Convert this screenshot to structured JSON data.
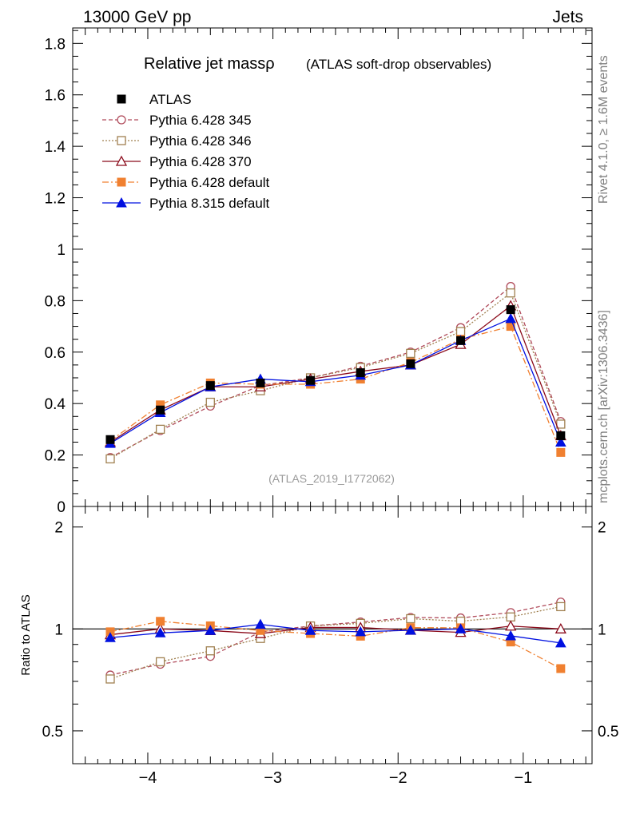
{
  "header": {
    "left": "13000 GeV pp",
    "right": "Jets"
  },
  "side_text": {
    "rivet": "Rivet 4.1.0, ≥ 1.6M events",
    "mcplots": "mcplots.cern.ch [arXiv:1306.3436]"
  },
  "chart_data": {
    "type": "line",
    "title": "Relative jet massρ",
    "subtitle": "(ATLAS soft-drop observables)",
    "analysis_label": "(ATLAS_2019_I1772062)",
    "x": [
      -4.3,
      -3.9,
      -3.5,
      -3.1,
      -2.7,
      -2.3,
      -1.9,
      -1.5,
      -1.1,
      -0.7
    ],
    "xlim": [
      -4.6,
      -0.45
    ],
    "x_ticks": [
      -4,
      -3,
      -2,
      -1
    ],
    "x_tick_labels": [
      "−4",
      "−3",
      "−2",
      "−1"
    ],
    "main": {
      "ylim": [
        0,
        1.86
      ],
      "y_ticks": [
        0,
        0.2,
        0.4,
        0.6,
        0.8,
        1,
        1.2,
        1.4,
        1.6,
        1.8
      ],
      "y_tick_labels": [
        "0",
        "0.2",
        "0.4",
        "0.6",
        "0.8",
        "1",
        "1.2",
        "1.4",
        "1.6",
        "1.8"
      ]
    },
    "ratio": {
      "ylabel": "Ratio to ATLAS",
      "scale": "log",
      "ylim": [
        0.4,
        2.3
      ],
      "y_ticks": [
        0.5,
        1,
        2
      ],
      "y_tick_labels": [
        "0.5",
        "1",
        "2"
      ]
    },
    "legend": {
      "placement": "top-left"
    },
    "series": [
      {
        "name": "ATLAS",
        "color": "#000000",
        "dash": "",
        "marker": "square-filled",
        "values": [
          0.26,
          0.375,
          0.47,
          0.48,
          0.49,
          0.52,
          0.555,
          0.645,
          0.765,
          0.275
        ]
      },
      {
        "name": "Pythia 6.428 345",
        "color": "#b04a5a",
        "dash": "5,3",
        "marker": "circle-open",
        "values": [
          0.19,
          0.295,
          0.39,
          0.47,
          0.5,
          0.545,
          0.6,
          0.695,
          0.855,
          0.33
        ]
      },
      {
        "name": "Pythia 6.428 346",
        "color": "#a08050",
        "dash": "2,2",
        "marker": "square-open",
        "values": [
          0.185,
          0.3,
          0.405,
          0.45,
          0.5,
          0.54,
          0.595,
          0.68,
          0.83,
          0.32
        ]
      },
      {
        "name": "Pythia 6.428 370",
        "color": "#8b0a1a",
        "dash": "",
        "marker": "triangle-open",
        "values": [
          0.25,
          0.375,
          0.465,
          0.465,
          0.495,
          0.525,
          0.55,
          0.63,
          0.78,
          0.275
        ]
      },
      {
        "name": "Pythia 6.428 default",
        "color": "#f08030",
        "dash": "8,3,2,3",
        "marker": "square-filled",
        "values": [
          0.255,
          0.395,
          0.48,
          0.475,
          0.475,
          0.495,
          0.56,
          0.65,
          0.7,
          0.21
        ]
      },
      {
        "name": "Pythia 8.315 default",
        "color": "#0010e0",
        "dash": "",
        "marker": "triangle-filled",
        "values": [
          0.245,
          0.365,
          0.465,
          0.495,
          0.485,
          0.51,
          0.55,
          0.645,
          0.73,
          0.25
        ]
      }
    ]
  }
}
